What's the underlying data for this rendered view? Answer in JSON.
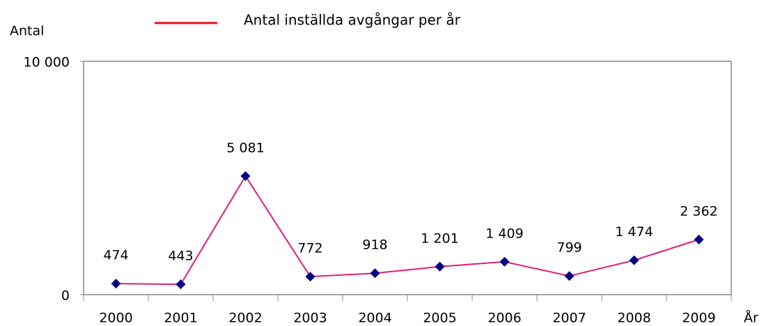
{
  "chart_data": {
    "type": "line",
    "legend_title": "Antal inställda avgångar per år",
    "ylabel": "Antal",
    "xlabel": "År",
    "categories": [
      "2000",
      "2001",
      "2002",
      "2003",
      "2004",
      "2005",
      "2006",
      "2007",
      "2008",
      "2009"
    ],
    "series": [
      {
        "name": "Antal inställda avgångar per år",
        "color": "#e31c79",
        "marker_color": "#000080",
        "legend_color": "#e8101e",
        "values": [
          474,
          443,
          5081,
          772,
          918,
          1201,
          1409,
          799,
          1474,
          2362
        ],
        "value_labels": [
          "474",
          "443",
          "5 081",
          "772",
          "918",
          "1 201",
          "1 409",
          "799",
          "1 474",
          "2 362"
        ]
      }
    ],
    "ylim": [
      0,
      10000
    ],
    "yticks": [
      0,
      {
        "value": 10000,
        "label": "10 000"
      }
    ],
    "grid": false
  }
}
